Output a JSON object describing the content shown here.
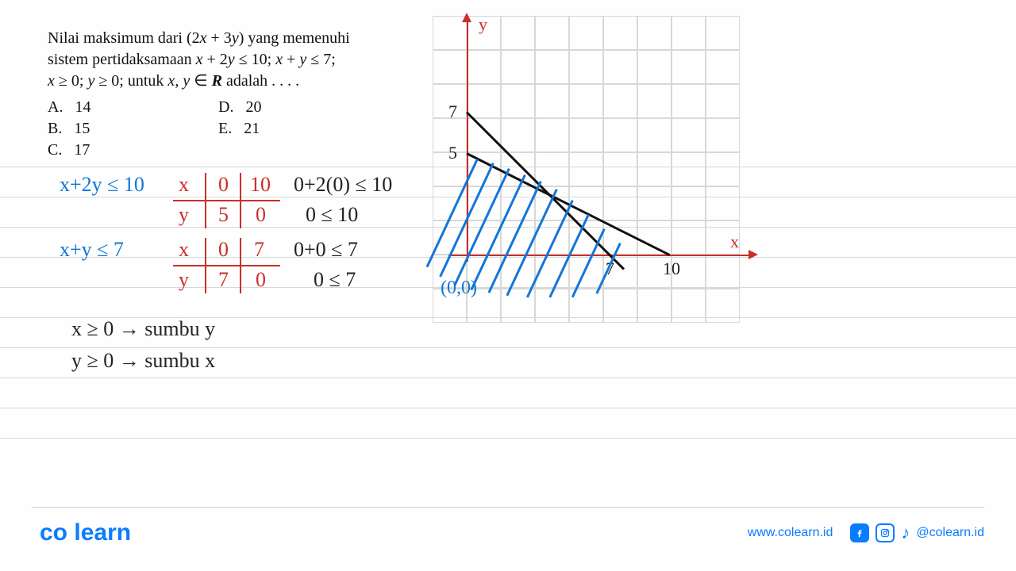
{
  "problem": {
    "line1_a": "Nilai maksimum dari (2",
    "line1_b": " + 3",
    "line1_c": ") yang memenuhi",
    "line2_a": "sistem pertidaksamaan ",
    "line2_b": " + 2",
    "line2_c": " ≤ 10; ",
    "line2_d": " + ",
    "line2_e": " ≤ 7;",
    "line3_a": " ≥ 0; ",
    "line3_b": " ≥ 0; untuk ",
    "line3_c": ", ",
    "line3_d": " ∈ ",
    "line3_e": " adalah . . . .",
    "x": "x",
    "y": "y",
    "R": "R"
  },
  "options": {
    "A": "A.   14",
    "B": "B.   15",
    "C": "C.   17",
    "D": "D.   20",
    "E": "E.   21"
  },
  "work": {
    "eq1": "x+2y ≤ 10",
    "eq2": "x+y ≤ 7",
    "t1": {
      "hx": "x",
      "hy": "y",
      "c00": "0",
      "c01": "10",
      "c10": "5",
      "c11": "0"
    },
    "t2": {
      "hx": "x",
      "hy": "y",
      "c00": "0",
      "c01": "7",
      "c10": "7",
      "c11": "0"
    },
    "chk1a": "0+2(0) ≤ 10",
    "chk1b": "0 ≤ 10",
    "chk2a": "0+0 ≤ 7",
    "chk2b": "0 ≤ 7",
    "ax1": "x ≥ 0 → sumbu y",
    "ax2": "y ≥ 0 → sumbu x"
  },
  "graph": {
    "ylab": "y",
    "xlab": "x",
    "t7": "7",
    "t5": "5",
    "t7x": "7",
    "t10": "10",
    "origin": "(0,0)",
    "grid": {
      "cols": 9,
      "rows": 9,
      "cell": 43,
      "color": "#dcdcdc"
    },
    "axis_color": "#c9302c",
    "line_color": "#111111",
    "hatch_color": "#1276d8"
  },
  "footer": {
    "brand_a": "co",
    "brand_b": "learn",
    "url": "www.colearn.id",
    "handle": "@colearn.id"
  },
  "rule_positions": [
    210,
    248,
    286,
    324,
    362,
    400,
    438,
    476,
    514,
    552,
    590
  ]
}
